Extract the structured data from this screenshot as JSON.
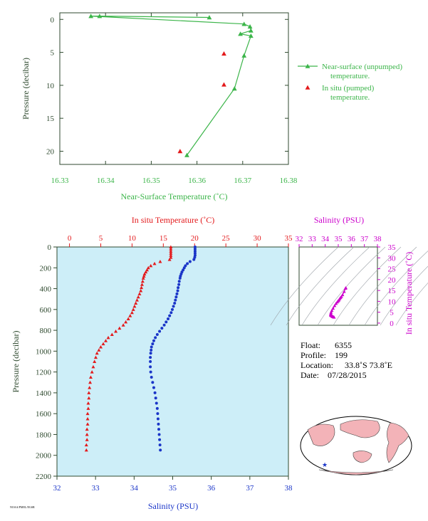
{
  "colors": {
    "green": "#3cb54a",
    "dark_green": "#2f4a2f",
    "red": "#e31a1c",
    "blue": "#1a35c8",
    "magenta": "#cc00cc",
    "profile_bg": "#cdeef8",
    "map_land": "#f3b3b8",
    "map_ocean": "#ffffff"
  },
  "chart_data": [
    {
      "id": "near-surface",
      "type": "line",
      "xlabel": "Near-Surface Temperature (˚C)",
      "ylabel": "Pressure (decibar)",
      "xlim": [
        16.33,
        16.38
      ],
      "ylim": [
        22,
        -1
      ],
      "xticks": [
        "16.33",
        "16.34",
        "16.35",
        "16.36",
        "16.37",
        "16.38"
      ],
      "yticks": [
        "0",
        "5",
        "10",
        "15",
        "20"
      ],
      "series": [
        {
          "name": "Near-surface (unpumped) temperature.",
          "marker": "triangle",
          "color": "#3cb54a",
          "points": [
            [
              16.3627,
              -0.3
            ],
            [
              16.3387,
              -0.5
            ],
            [
              16.3368,
              -0.5
            ],
            [
              16.3703,
              0.7
            ],
            [
              16.3716,
              1.1
            ],
            [
              16.3718,
              1.7
            ],
            [
              16.3695,
              2.2
            ],
            [
              16.3718,
              2.5
            ],
            [
              16.3703,
              5.5
            ],
            [
              16.3682,
              10.5
            ],
            [
              16.3578,
              20.6
            ]
          ]
        },
        {
          "name": "In situ (pumped) temperature.",
          "marker": "triangle",
          "color": "#e31a1c",
          "points": [
            [
              16.3659,
              5.2
            ],
            [
              16.3659,
              9.9
            ],
            [
              16.3563,
              20.0
            ]
          ]
        }
      ],
      "legend": [
        {
          "label_line1": "Near-surface (unpumped)",
          "label_line2": "temperature."
        },
        {
          "label_line1": "In situ (pumped)",
          "label_line2": "temperature."
        }
      ]
    },
    {
      "id": "profile",
      "type": "line",
      "top_axis_label": "In situ Temperature (˚C)",
      "bottom_axis_label": "Salinity (PSU)",
      "ylabel": "Pressure (decibar)",
      "temp_lim": [
        -2,
        35
      ],
      "sal_lim": [
        32,
        38
      ],
      "pressure_lim": [
        2200,
        0
      ],
      "temp_ticks": [
        "0",
        "5",
        "10",
        "15",
        "20",
        "25",
        "30",
        "35"
      ],
      "sal_ticks": [
        "32",
        "33",
        "34",
        "35",
        "36",
        "37",
        "38"
      ],
      "pressure_ticks": [
        "0",
        "200",
        "400",
        "600",
        "800",
        "1000",
        "1200",
        "1400",
        "1600",
        "1800",
        "2000",
        "2200"
      ],
      "temperature_profile": [
        [
          16.2,
          0
        ],
        [
          16.2,
          20
        ],
        [
          16.2,
          40
        ],
        [
          16.2,
          60
        ],
        [
          16.2,
          80
        ],
        [
          16.2,
          100
        ],
        [
          16.0,
          120
        ],
        [
          14.5,
          140
        ],
        [
          13.6,
          160
        ],
        [
          13.0,
          180
        ],
        [
          12.6,
          200
        ],
        [
          12.4,
          220
        ],
        [
          12.2,
          240
        ],
        [
          12.0,
          260
        ],
        [
          11.9,
          280
        ],
        [
          11.8,
          300
        ],
        [
          11.7,
          330
        ],
        [
          11.6,
          360
        ],
        [
          11.5,
          390
        ],
        [
          11.4,
          420
        ],
        [
          11.2,
          450
        ],
        [
          11.0,
          480
        ],
        [
          10.8,
          510
        ],
        [
          10.6,
          540
        ],
        [
          10.4,
          570
        ],
        [
          10.2,
          600
        ],
        [
          10.0,
          630
        ],
        [
          9.7,
          660
        ],
        [
          9.4,
          690
        ],
        [
          9.0,
          720
        ],
        [
          8.6,
          750
        ],
        [
          8.0,
          780
        ],
        [
          7.4,
          810
        ],
        [
          6.8,
          840
        ],
        [
          6.2,
          870
        ],
        [
          5.8,
          900
        ],
        [
          5.4,
          930
        ],
        [
          5.0,
          960
        ],
        [
          4.7,
          990
        ],
        [
          4.4,
          1020
        ],
        [
          4.2,
          1060
        ],
        [
          4.0,
          1100
        ],
        [
          3.8,
          1150
        ],
        [
          3.6,
          1200
        ],
        [
          3.4,
          1250
        ],
        [
          3.3,
          1300
        ],
        [
          3.2,
          1350
        ],
        [
          3.1,
          1400
        ],
        [
          3.1,
          1450
        ],
        [
          3.0,
          1500
        ],
        [
          3.0,
          1550
        ],
        [
          2.9,
          1600
        ],
        [
          2.9,
          1650
        ],
        [
          2.9,
          1700
        ],
        [
          2.8,
          1750
        ],
        [
          2.8,
          1800
        ],
        [
          2.8,
          1850
        ],
        [
          2.7,
          1900
        ],
        [
          2.7,
          1950
        ]
      ],
      "salinity_profile": [
        [
          35.58,
          0
        ],
        [
          35.58,
          20
        ],
        [
          35.58,
          40
        ],
        [
          35.58,
          60
        ],
        [
          35.58,
          80
        ],
        [
          35.57,
          100
        ],
        [
          35.55,
          120
        ],
        [
          35.45,
          140
        ],
        [
          35.38,
          160
        ],
        [
          35.33,
          180
        ],
        [
          35.3,
          200
        ],
        [
          35.27,
          220
        ],
        [
          35.24,
          240
        ],
        [
          35.22,
          260
        ],
        [
          35.2,
          280
        ],
        [
          35.19,
          300
        ],
        [
          35.17,
          330
        ],
        [
          35.16,
          360
        ],
        [
          35.14,
          390
        ],
        [
          35.13,
          420
        ],
        [
          35.11,
          450
        ],
        [
          35.09,
          480
        ],
        [
          35.07,
          510
        ],
        [
          35.05,
          540
        ],
        [
          35.02,
          570
        ],
        [
          34.99,
          600
        ],
        [
          34.96,
          630
        ],
        [
          34.92,
          660
        ],
        [
          34.88,
          690
        ],
        [
          34.83,
          720
        ],
        [
          34.78,
          750
        ],
        [
          34.72,
          780
        ],
        [
          34.66,
          810
        ],
        [
          34.6,
          840
        ],
        [
          34.55,
          870
        ],
        [
          34.51,
          900
        ],
        [
          34.48,
          930
        ],
        [
          34.45,
          960
        ],
        [
          34.44,
          990
        ],
        [
          34.43,
          1020
        ],
        [
          34.42,
          1060
        ],
        [
          34.42,
          1100
        ],
        [
          34.42,
          1150
        ],
        [
          34.43,
          1200
        ],
        [
          34.45,
          1250
        ],
        [
          34.48,
          1300
        ],
        [
          34.51,
          1350
        ],
        [
          34.54,
          1400
        ],
        [
          34.56,
          1450
        ],
        [
          34.58,
          1500
        ],
        [
          34.6,
          1550
        ],
        [
          34.61,
          1600
        ],
        [
          34.62,
          1650
        ],
        [
          34.63,
          1700
        ],
        [
          34.64,
          1750
        ],
        [
          34.65,
          1800
        ],
        [
          34.66,
          1850
        ],
        [
          34.67,
          1900
        ],
        [
          34.68,
          1950
        ]
      ]
    },
    {
      "id": "ts-diagram",
      "type": "scatter",
      "xlabel": "Salinity (PSU)",
      "ylabel": "In situ Temperature (˚C)",
      "xlim": [
        32,
        38
      ],
      "ylim": [
        -1,
        35
      ],
      "xticks": [
        "32",
        "33",
        "34",
        "35",
        "36",
        "37",
        "38"
      ],
      "yticks": [
        "0",
        "5",
        "10",
        "15",
        "20",
        "25",
        "30",
        "35"
      ],
      "points": [
        [
          35.58,
          16.2
        ],
        [
          35.55,
          16.0
        ],
        [
          35.45,
          14.5
        ],
        [
          35.33,
          13.0
        ],
        [
          35.24,
          12.2
        ],
        [
          35.17,
          11.7
        ],
        [
          35.11,
          11.2
        ],
        [
          35.05,
          10.6
        ],
        [
          34.99,
          10.2
        ],
        [
          34.92,
          9.7
        ],
        [
          34.83,
          9.0
        ],
        [
          34.72,
          8.0
        ],
        [
          34.6,
          6.8
        ],
        [
          34.51,
          5.8
        ],
        [
          34.45,
          5.0
        ],
        [
          34.43,
          4.4
        ],
        [
          34.42,
          4.0
        ],
        [
          34.42,
          3.6
        ],
        [
          34.48,
          3.3
        ],
        [
          34.54,
          3.1
        ],
        [
          34.58,
          3.0
        ],
        [
          34.61,
          2.9
        ],
        [
          34.64,
          2.8
        ],
        [
          34.68,
          2.7
        ]
      ]
    }
  ],
  "float_info": {
    "float_label": "Float:",
    "float_value": "6355",
    "profile_label": "Profile:",
    "profile_value": "199",
    "location_label": "Location:",
    "location_value": "33.8˚S  73.8˚E",
    "date_label": "Date:",
    "date_value": "07/28/2015"
  },
  "map": {
    "marker_symbol": "★"
  },
  "footer_note": "NOAA/PMEL/EGSR"
}
